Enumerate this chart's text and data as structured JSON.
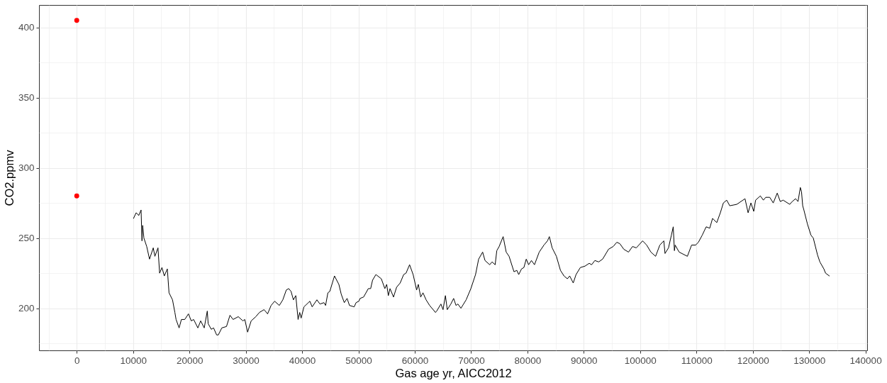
{
  "chart_data": {
    "type": "line",
    "xlabel": "Gas age yr, AICC2012",
    "ylabel": "CO2.ppmv",
    "xlim": [
      -6700,
      140300
    ],
    "ylim": [
      170,
      416
    ],
    "xticks": [
      0,
      10000,
      20000,
      30000,
      40000,
      50000,
      60000,
      70000,
      80000,
      90000,
      100000,
      110000,
      120000,
      130000,
      140000
    ],
    "yticks": [
      200,
      250,
      300,
      350,
      400
    ],
    "grid": true,
    "series": [
      {
        "color": "#000000",
        "x": [
          10080,
          10540,
          10830,
          11000,
          11420,
          11580,
          11700,
          11920,
          12420,
          12920,
          13580,
          13870,
          14420,
          14710,
          15130,
          15540,
          16080,
          16380,
          17000,
          17420,
          17630,
          18170,
          18580,
          19170,
          19830,
          20330,
          20750,
          21500,
          22000,
          22630,
          23170,
          23330,
          23880,
          24290,
          24830,
          25130,
          25750,
          26580,
          27200,
          27750,
          28670,
          29500,
          29830,
          30330,
          30960,
          31790,
          32420,
          33250,
          33880,
          34500,
          35130,
          35960,
          36580,
          37200,
          37630,
          38040,
          38460,
          38880,
          39290,
          39580,
          39830,
          40330,
          41380,
          41790,
          42630,
          43170,
          43880,
          44170,
          44580,
          44920,
          45750,
          46530,
          46950,
          47490,
          47990,
          48410,
          49250,
          49580,
          50080,
          50290,
          50920,
          51760,
          52170,
          52510,
          53100,
          54060,
          54690,
          55020,
          55310,
          55610,
          56230,
          56780,
          57410,
          58030,
          58450,
          59080,
          59710,
          60330,
          60630,
          61050,
          61460,
          62010,
          62640,
          63680,
          63890,
          64640,
          65020,
          65440,
          65770,
          66400,
          66900,
          67320,
          67660,
          68200,
          69120,
          69960,
          70790,
          71340,
          72050,
          72470,
          73300,
          73720,
          74270,
          74560,
          74980,
          75690,
          76230,
          76740,
          77610,
          78120,
          78450,
          78950,
          79370,
          79790,
          80210,
          80710,
          81250,
          82090,
          82930,
          83560,
          83890,
          84390,
          85140,
          85860,
          86490,
          87090,
          87500,
          88130,
          88630,
          89390,
          90210,
          90970,
          91390,
          91970,
          92640,
          93350,
          94390,
          95230,
          95860,
          96400,
          97110,
          97940,
          98660,
          99320,
          100450,
          101160,
          101910,
          102750,
          103500,
          104210,
          104420,
          105040,
          105550,
          105880,
          106090,
          106220,
          106930,
          108390,
          109140,
          109850,
          110350,
          111020,
          111730,
          112360,
          112860,
          113610,
          114240,
          114780,
          115370,
          115910,
          117160,
          118620,
          119170,
          119670,
          120170,
          120500,
          121340,
          121880,
          122300,
          123010,
          123630,
          124340,
          124880,
          125390,
          126560,
          127000,
          127600,
          128030,
          128440,
          128650,
          128860,
          129070,
          129700,
          130330,
          130740,
          131490,
          131910,
          132620,
          132920,
          133590
        ],
        "values": [
          264,
          268,
          267,
          266,
          270,
          248,
          259,
          250,
          244,
          235,
          243,
          237,
          243,
          225,
          229,
          223,
          228,
          211,
          206,
          197,
          192,
          186,
          192,
          192,
          196,
          191,
          192,
          186,
          191,
          186,
          198,
          189,
          185,
          186,
          181,
          181,
          186,
          187,
          195,
          192,
          194,
          191,
          192,
          183,
          191,
          194,
          197,
          199,
          196,
          202,
          205,
          202,
          206,
          213,
          214,
          212,
          206,
          209,
          192,
          197,
          193,
          201,
          205,
          201,
          206,
          203,
          204,
          202,
          211,
          212,
          223,
          217,
          210,
          204,
          207,
          202,
          201,
          204,
          205,
          207,
          208,
          214,
          214,
          220,
          224,
          221,
          214,
          217,
          209,
          214,
          208,
          215,
          218,
          224,
          225,
          231,
          224,
          213,
          217,
          208,
          211,
          206,
          202,
          197,
          198,
          203,
          199,
          209,
          199,
          203,
          207,
          202,
          203,
          200,
          206,
          214,
          224,
          235,
          240,
          234,
          231,
          233,
          231,
          241,
          244,
          251,
          240,
          237,
          226,
          227,
          224,
          228,
          229,
          235,
          231,
          234,
          231,
          240,
          245,
          248,
          251,
          243,
          237,
          227,
          223,
          221,
          223,
          218,
          224,
          229,
          230,
          232,
          231,
          234,
          233,
          235,
          242,
          244,
          247,
          246,
          242,
          240,
          244,
          243,
          248,
          245,
          240,
          237,
          245,
          248,
          239,
          243,
          252,
          258,
          241,
          245,
          240,
          237,
          245,
          245,
          247,
          252,
          258,
          257,
          264,
          261,
          268,
          275,
          277,
          273,
          274,
          278,
          268,
          275,
          269,
          277,
          280,
          277,
          279,
          279,
          275,
          282,
          276,
          277,
          274,
          276,
          278,
          276,
          286,
          283,
          273,
          270,
          260,
          252,
          250,
          238,
          233,
          228,
          225,
          223
        ]
      },
      {
        "type": "scatter",
        "color": "#ff0000",
        "marker": "circle",
        "x": [
          0,
          0
        ],
        "values": [
          405,
          280
        ]
      }
    ]
  }
}
